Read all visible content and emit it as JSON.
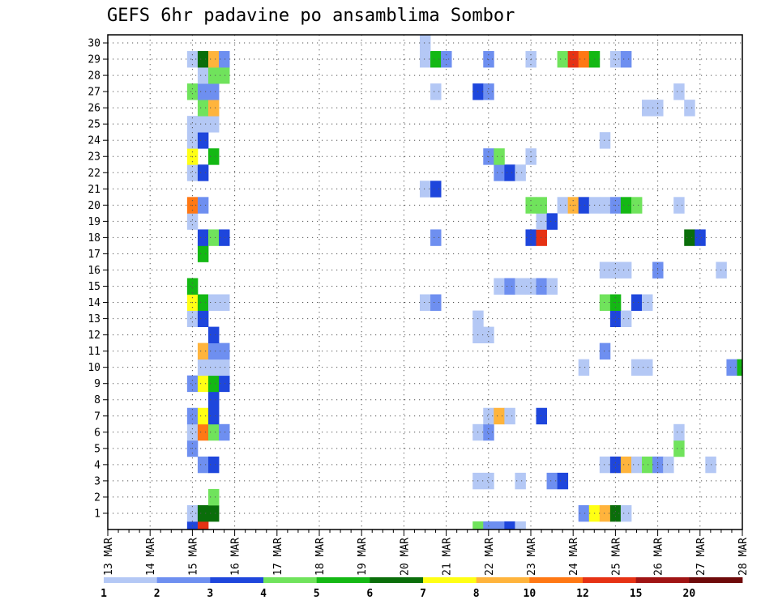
{
  "chart_data": {
    "type": "heatmap",
    "title": "GEFS 6hr padavine po ansamblima Sombor",
    "xlabel": "",
    "ylabel": "",
    "x_tick_labels": [
      "13 MAR",
      "14 MAR",
      "15 MAR",
      "16 MAR",
      "17 MAR",
      "18 MAR",
      "19 MAR",
      "20 MAR",
      "21 MAR",
      "22 MAR",
      "23 MAR",
      "24 MAR",
      "25 MAR",
      "26 MAR",
      "27 MAR",
      "28 MAR"
    ],
    "x_units": "6-hour steps since 13 MAR 00Z",
    "x_range": [
      0,
      60
    ],
    "y_tick_labels": [
      "1",
      "2",
      "3",
      "4",
      "5",
      "6",
      "7",
      "8",
      "9",
      "10",
      "11",
      "12",
      "13",
      "14",
      "15",
      "16",
      "17",
      "18",
      "19",
      "20",
      "21",
      "22",
      "23",
      "24",
      "25",
      "26",
      "27",
      "28",
      "29",
      "30"
    ],
    "y_range": [
      0,
      30.5
    ],
    "grid": true,
    "legend": {
      "placement": "bottom",
      "labels": [
        "1",
        "2",
        "3",
        "4",
        "5",
        "6",
        "7",
        "8",
        "10",
        "12",
        "15",
        "20"
      ],
      "colors": [
        "#b4c8f5",
        "#6e8ff0",
        "#1e46dc",
        "#70e35c",
        "#14b814",
        "#0a6e0a",
        "#ffff14",
        "#ffb43c",
        "#ff7814",
        "#e63214",
        "#a01414",
        "#6e0a0a"
      ]
    },
    "level_colors": [
      "#b4c8f5",
      "#6e8ff0",
      "#1e46dc",
      "#70e35c",
      "#14b814",
      "#0a6e0a",
      "#ffff14",
      "#ffb43c",
      "#ff7814",
      "#e63214",
      "#a01414",
      "#6e0a0a"
    ],
    "cells": [
      [
        8,
        0,
        2
      ],
      [
        9,
        0,
        9
      ],
      [
        35,
        0,
        3
      ],
      [
        36,
        0,
        1
      ],
      [
        37,
        0,
        1
      ],
      [
        38,
        0,
        2
      ],
      [
        39,
        0,
        0
      ],
      [
        8,
        1,
        0
      ],
      [
        9,
        1,
        5
      ],
      [
        10,
        1,
        5
      ],
      [
        45,
        1,
        1
      ],
      [
        46,
        1,
        6
      ],
      [
        47,
        1,
        7
      ],
      [
        48,
        1,
        5
      ],
      [
        49,
        1,
        0
      ],
      [
        10,
        2,
        3
      ],
      [
        35,
        3,
        0
      ],
      [
        36,
        3,
        0
      ],
      [
        39,
        3,
        0
      ],
      [
        42,
        3,
        1
      ],
      [
        43,
        3,
        2
      ],
      [
        9,
        4,
        1
      ],
      [
        10,
        4,
        2
      ],
      [
        47,
        4,
        0
      ],
      [
        48,
        4,
        2
      ],
      [
        49,
        4,
        7
      ],
      [
        50,
        4,
        0
      ],
      [
        51,
        4,
        3
      ],
      [
        52,
        4,
        1
      ],
      [
        53,
        4,
        0
      ],
      [
        57,
        4,
        0
      ],
      [
        8,
        5,
        1
      ],
      [
        54,
        5,
        3
      ],
      [
        8,
        6,
        0
      ],
      [
        9,
        6,
        8
      ],
      [
        10,
        6,
        3
      ],
      [
        11,
        6,
        1
      ],
      [
        35,
        6,
        0
      ],
      [
        36,
        6,
        1
      ],
      [
        54,
        6,
        0
      ],
      [
        8,
        7,
        1
      ],
      [
        9,
        7,
        6
      ],
      [
        10,
        7,
        2
      ],
      [
        36,
        7,
        0
      ],
      [
        37,
        7,
        7
      ],
      [
        38,
        7,
        0
      ],
      [
        41,
        7,
        2
      ],
      [
        10,
        8,
        2
      ],
      [
        8,
        9,
        1
      ],
      [
        9,
        9,
        6
      ],
      [
        10,
        9,
        4
      ],
      [
        11,
        9,
        2
      ],
      [
        9,
        10,
        0
      ],
      [
        10,
        10,
        0
      ],
      [
        11,
        10,
        0
      ],
      [
        45,
        10,
        0
      ],
      [
        50,
        10,
        0
      ],
      [
        51,
        10,
        0
      ],
      [
        59,
        10,
        1
      ],
      [
        60,
        10,
        4
      ],
      [
        9,
        11,
        7
      ],
      [
        10,
        11,
        1
      ],
      [
        11,
        11,
        1
      ],
      [
        47,
        11,
        1
      ],
      [
        10,
        12,
        2
      ],
      [
        35,
        12,
        0
      ],
      [
        36,
        12,
        0
      ],
      [
        8,
        13,
        0
      ],
      [
        9,
        13,
        2
      ],
      [
        35,
        13,
        0
      ],
      [
        48,
        13,
        2
      ],
      [
        49,
        13,
        0
      ],
      [
        8,
        14,
        6
      ],
      [
        9,
        14,
        4
      ],
      [
        10,
        14,
        0
      ],
      [
        11,
        14,
        0
      ],
      [
        30,
        14,
        0
      ],
      [
        31,
        14,
        1
      ],
      [
        47,
        14,
        3
      ],
      [
        48,
        14,
        4
      ],
      [
        50,
        14,
        2
      ],
      [
        51,
        14,
        0
      ],
      [
        8,
        15,
        4
      ],
      [
        37,
        15,
        0
      ],
      [
        38,
        15,
        1
      ],
      [
        39,
        15,
        0
      ],
      [
        40,
        15,
        0
      ],
      [
        41,
        15,
        1
      ],
      [
        42,
        15,
        0
      ],
      [
        47,
        16,
        0
      ],
      [
        48,
        16,
        0
      ],
      [
        49,
        16,
        0
      ],
      [
        52,
        16,
        1
      ],
      [
        58,
        16,
        0
      ],
      [
        9,
        17,
        4
      ],
      [
        9,
        18,
        2
      ],
      [
        10,
        18,
        3
      ],
      [
        11,
        18,
        2
      ],
      [
        31,
        18,
        1
      ],
      [
        40,
        18,
        2
      ],
      [
        41,
        18,
        9
      ],
      [
        55,
        18,
        5
      ],
      [
        56,
        18,
        2
      ],
      [
        8,
        19,
        0
      ],
      [
        41,
        19,
        0
      ],
      [
        42,
        19,
        2
      ],
      [
        8,
        20,
        8
      ],
      [
        9,
        20,
        1
      ],
      [
        40,
        20,
        3
      ],
      [
        41,
        20,
        3
      ],
      [
        43,
        20,
        0
      ],
      [
        44,
        20,
        7
      ],
      [
        45,
        20,
        2
      ],
      [
        46,
        20,
        0
      ],
      [
        47,
        20,
        0
      ],
      [
        48,
        20,
        1
      ],
      [
        49,
        20,
        4
      ],
      [
        50,
        20,
        3
      ],
      [
        54,
        20,
        0
      ],
      [
        30,
        21,
        0
      ],
      [
        31,
        21,
        2
      ],
      [
        8,
        22,
        0
      ],
      [
        9,
        22,
        2
      ],
      [
        37,
        22,
        1
      ],
      [
        38,
        22,
        2
      ],
      [
        39,
        22,
        0
      ],
      [
        8,
        23,
        6
      ],
      [
        10,
        23,
        4
      ],
      [
        36,
        23,
        1
      ],
      [
        37,
        23,
        3
      ],
      [
        40,
        23,
        0
      ],
      [
        8,
        24,
        0
      ],
      [
        9,
        24,
        2
      ],
      [
        47,
        24,
        0
      ],
      [
        8,
        25,
        0
      ],
      [
        9,
        25,
        0
      ],
      [
        10,
        25,
        0
      ],
      [
        9,
        26,
        3
      ],
      [
        10,
        26,
        7
      ],
      [
        51,
        26,
        0
      ],
      [
        52,
        26,
        0
      ],
      [
        55,
        26,
        0
      ],
      [
        8,
        27,
        3
      ],
      [
        9,
        27,
        1
      ],
      [
        10,
        27,
        1
      ],
      [
        31,
        27,
        0
      ],
      [
        35,
        27,
        2
      ],
      [
        36,
        27,
        1
      ],
      [
        54,
        27,
        0
      ],
      [
        9,
        28,
        0
      ],
      [
        10,
        28,
        3
      ],
      [
        11,
        28,
        3
      ],
      [
        8,
        29,
        0
      ],
      [
        9,
        29,
        5
      ],
      [
        10,
        29,
        7
      ],
      [
        11,
        29,
        1
      ],
      [
        30,
        29,
        0
      ],
      [
        31,
        29,
        4
      ],
      [
        32,
        29,
        1
      ],
      [
        36,
        29,
        1
      ],
      [
        40,
        29,
        0
      ],
      [
        43,
        29,
        3
      ],
      [
        44,
        29,
        9
      ],
      [
        45,
        29,
        8
      ],
      [
        46,
        29,
        4
      ],
      [
        48,
        29,
        0
      ],
      [
        49,
        29,
        1
      ],
      [
        30,
        30,
        0
      ]
    ]
  }
}
